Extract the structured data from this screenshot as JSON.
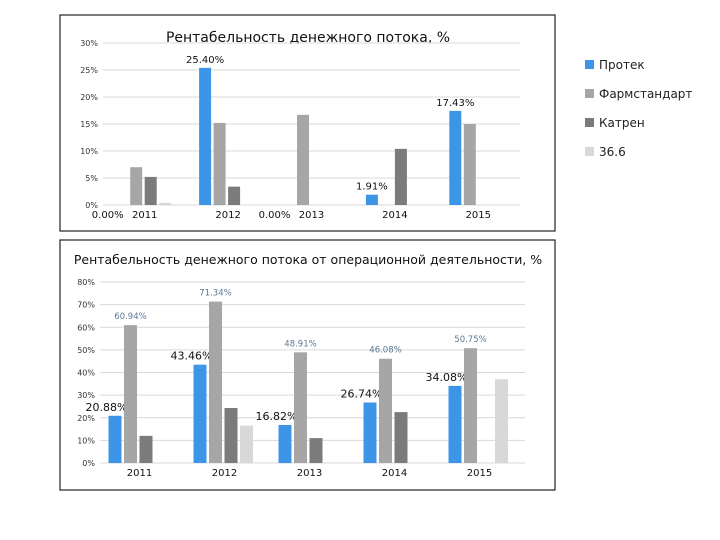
{
  "colors": {
    "Протек": "#3d95e8",
    "Фармстандарт": "#a6a6a6",
    "Катрен": "#7b7b7b",
    "36.6": "#d8d8d8",
    "label_secondary": "#5a7a96"
  },
  "legend": [
    {
      "name": "Протек",
      "color": "#3d95e8"
    },
    {
      "name": "Фармстандарт",
      "color": "#a6a6a6"
    },
    {
      "name": "Катрен",
      "color": "#7b7b7b"
    },
    {
      "name": "36.6",
      "color": "#d8d8d8"
    }
  ],
  "chart_data": [
    {
      "type": "bar",
      "title": "Рентабельность денежного потока, %",
      "categories": [
        "2011",
        "2012",
        "2013",
        "2014",
        "2015"
      ],
      "ylim": [
        0,
        30
      ],
      "yticks": [
        "0%",
        "5%",
        "10%",
        "15%",
        "20%",
        "25%",
        "30%"
      ],
      "grid": true,
      "legend": "right",
      "series": [
        {
          "name": "Протек",
          "values": [
            0,
            25.4,
            0,
            1.91,
            17.43
          ],
          "labels": [
            "0.00%",
            "25.40%",
            "0.00%",
            "1.91%",
            "17.43%"
          ]
        },
        {
          "name": "Фармстандарт",
          "values": [
            7.0,
            15.2,
            16.7,
            0,
            15.0
          ]
        },
        {
          "name": "Катрен",
          "values": [
            5.2,
            3.4,
            0,
            10.4,
            0
          ]
        },
        {
          "name": "36.6",
          "values": [
            0.4,
            0,
            0,
            0,
            0
          ]
        }
      ]
    },
    {
      "type": "bar",
      "title": "Рентабельность денежного потока от операционной деятельности, %",
      "categories": [
        "2011",
        "2012",
        "2013",
        "2014",
        "2015"
      ],
      "ylim": [
        0,
        80
      ],
      "yticks": [
        "0%",
        "10%",
        "20%",
        "30%",
        "40%",
        "50%",
        "60%",
        "70%",
        "80%"
      ],
      "grid": true,
      "series": [
        {
          "name": "Протек",
          "values": [
            20.88,
            43.46,
            16.82,
            26.74,
            34.08
          ],
          "labels": [
            "20.88%",
            "43.46%",
            "16.82%",
            "26.74%",
            "34.08%"
          ]
        },
        {
          "name": "Фармстандарт",
          "values": [
            60.94,
            71.34,
            48.91,
            46.08,
            50.75
          ],
          "labels": [
            "60.94%",
            "71.34%",
            "48.91%",
            "46.08%",
            "50.75%"
          ]
        },
        {
          "name": "Катрен",
          "values": [
            12.0,
            24.3,
            11.0,
            22.5,
            0
          ]
        },
        {
          "name": "36.6",
          "values": [
            0,
            16.5,
            0,
            0,
            37.0
          ]
        }
      ]
    }
  ]
}
